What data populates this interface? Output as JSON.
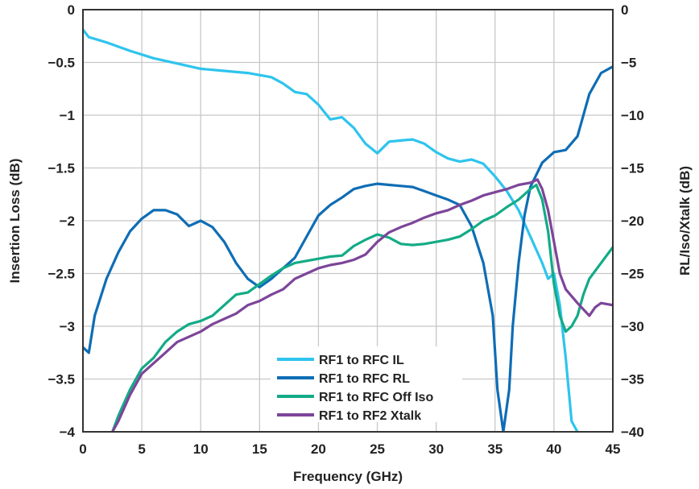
{
  "chart_data": {
    "type": "line",
    "xlabel": "Frequency (GHz)",
    "ylabel_left": "Insertion Loss (dB)",
    "ylabel_right": "RL/Iso/Xtalk (dB)",
    "xlim": [
      0,
      45
    ],
    "ylim_left": [
      -4,
      0
    ],
    "ylim_right": [
      -40,
      0
    ],
    "x_ticks": [
      0,
      5,
      10,
      15,
      20,
      25,
      30,
      35,
      40,
      45
    ],
    "y_ticks_left": [
      0,
      -0.5,
      -1,
      -1.5,
      -2,
      -2.5,
      -3,
      -3.5,
      -4
    ],
    "y_ticks_right": [
      0,
      -5,
      -10,
      -15,
      -20,
      -25,
      -30,
      -35,
      -40
    ],
    "grid": true,
    "legend_position": "bottom-center",
    "series": [
      {
        "name": "RF1 to RFC IL",
        "axis": "left",
        "color": "#2ec4ee",
        "points": [
          [
            0,
            -0.19
          ],
          [
            0.5,
            -0.26
          ],
          [
            2,
            -0.31
          ],
          [
            4,
            -0.39
          ],
          [
            6,
            -0.46
          ],
          [
            8,
            -0.51
          ],
          [
            10,
            -0.56
          ],
          [
            12,
            -0.58
          ],
          [
            14,
            -0.6
          ],
          [
            16,
            -0.64
          ],
          [
            17,
            -0.7
          ],
          [
            18,
            -0.78
          ],
          [
            19,
            -0.8
          ],
          [
            20,
            -0.9
          ],
          [
            21,
            -1.04
          ],
          [
            22,
            -1.02
          ],
          [
            23,
            -1.12
          ],
          [
            24,
            -1.27
          ],
          [
            25,
            -1.36
          ],
          [
            26,
            -1.25
          ],
          [
            27,
            -1.24
          ],
          [
            28,
            -1.23
          ],
          [
            29,
            -1.27
          ],
          [
            30,
            -1.35
          ],
          [
            31,
            -1.41
          ],
          [
            32,
            -1.44
          ],
          [
            33,
            -1.42
          ],
          [
            34,
            -1.46
          ],
          [
            35,
            -1.58
          ],
          [
            36,
            -1.72
          ],
          [
            37,
            -1.9
          ],
          [
            38,
            -2.15
          ],
          [
            39,
            -2.4
          ],
          [
            39.5,
            -2.55
          ],
          [
            40,
            -2.5
          ],
          [
            40.5,
            -2.8
          ],
          [
            41,
            -3.3
          ],
          [
            41.5,
            -3.9
          ],
          [
            42,
            -4.0
          ]
        ]
      },
      {
        "name": "RF1 to RFC RL",
        "axis": "right",
        "color": "#0f6db5",
        "points": [
          [
            0,
            -32
          ],
          [
            0.5,
            -32.5
          ],
          [
            1,
            -29
          ],
          [
            2,
            -25.5
          ],
          [
            3,
            -23
          ],
          [
            4,
            -21
          ],
          [
            5,
            -19.8
          ],
          [
            6,
            -19
          ],
          [
            7,
            -19
          ],
          [
            8,
            -19.4
          ],
          [
            9,
            -20.5
          ],
          [
            10,
            -20
          ],
          [
            11,
            -20.6
          ],
          [
            12,
            -22
          ],
          [
            13,
            -24
          ],
          [
            14,
            -25.5
          ],
          [
            15,
            -26.3
          ],
          [
            16,
            -25.5
          ],
          [
            17,
            -24.5
          ],
          [
            18,
            -23.5
          ],
          [
            19,
            -21.5
          ],
          [
            20,
            -19.5
          ],
          [
            21,
            -18.5
          ],
          [
            22,
            -17.8
          ],
          [
            23,
            -17
          ],
          [
            24,
            -16.7
          ],
          [
            25,
            -16.5
          ],
          [
            26,
            -16.6
          ],
          [
            27,
            -16.7
          ],
          [
            28,
            -16.8
          ],
          [
            29,
            -17.2
          ],
          [
            30,
            -17.6
          ],
          [
            31,
            -18
          ],
          [
            32,
            -18.5
          ],
          [
            33,
            -20.5
          ],
          [
            34,
            -24
          ],
          [
            34.8,
            -29
          ],
          [
            35.2,
            -36
          ],
          [
            35.7,
            -40
          ],
          [
            36.2,
            -36
          ],
          [
            36.5,
            -30
          ],
          [
            37,
            -24
          ],
          [
            37.5,
            -19.5
          ],
          [
            38,
            -16.8
          ],
          [
            39,
            -14.5
          ],
          [
            40,
            -13.5
          ],
          [
            41,
            -13.3
          ],
          [
            42,
            -12
          ],
          [
            43,
            -8
          ],
          [
            44,
            -6
          ],
          [
            45,
            -5.4
          ]
        ]
      },
      {
        "name": "RF1 to RFC Off Iso",
        "axis": "right",
        "color": "#13ab86",
        "points": [
          [
            2.5,
            -40
          ],
          [
            3,
            -38.5
          ],
          [
            4,
            -36
          ],
          [
            5,
            -34
          ],
          [
            6,
            -33
          ],
          [
            7,
            -31.5
          ],
          [
            8,
            -30.5
          ],
          [
            9,
            -29.8
          ],
          [
            10,
            -29.5
          ],
          [
            11,
            -29
          ],
          [
            12,
            -28
          ],
          [
            13,
            -27
          ],
          [
            14,
            -26.8
          ],
          [
            15,
            -26
          ],
          [
            16,
            -25.2
          ],
          [
            17,
            -24.5
          ],
          [
            18,
            -24
          ],
          [
            19,
            -23.8
          ],
          [
            20,
            -23.6
          ],
          [
            21,
            -23.4
          ],
          [
            22,
            -23.3
          ],
          [
            23,
            -22.4
          ],
          [
            24,
            -21.8
          ],
          [
            25,
            -21.3
          ],
          [
            26,
            -21.6
          ],
          [
            27,
            -22.2
          ],
          [
            28,
            -22.3
          ],
          [
            29,
            -22.2
          ],
          [
            30,
            -22.0
          ],
          [
            31,
            -21.8
          ],
          [
            32,
            -21.5
          ],
          [
            33,
            -20.8
          ],
          [
            34,
            -20
          ],
          [
            35,
            -19.5
          ],
          [
            36,
            -18.7
          ],
          [
            37,
            -18
          ],
          [
            38,
            -17
          ],
          [
            38.5,
            -16.6
          ],
          [
            39,
            -18
          ],
          [
            39.5,
            -21
          ],
          [
            40,
            -26
          ],
          [
            40.5,
            -29
          ],
          [
            41,
            -30.5
          ],
          [
            41.5,
            -30
          ],
          [
            42,
            -29
          ],
          [
            42.5,
            -27
          ],
          [
            43,
            -25.5
          ],
          [
            44,
            -24
          ],
          [
            45,
            -22.5
          ]
        ]
      },
      {
        "name": "RF1 to RF2 Xtalk",
        "axis": "right",
        "color": "#7d4599",
        "points": [
          [
            2.5,
            -40
          ],
          [
            3,
            -39
          ],
          [
            4,
            -36.5
          ],
          [
            5,
            -34.5
          ],
          [
            6,
            -33.5
          ],
          [
            7,
            -32.5
          ],
          [
            8,
            -31.5
          ],
          [
            9,
            -31
          ],
          [
            10,
            -30.5
          ],
          [
            11,
            -29.8
          ],
          [
            12,
            -29.3
          ],
          [
            13,
            -28.8
          ],
          [
            14,
            -28
          ],
          [
            15,
            -27.6
          ],
          [
            16,
            -27
          ],
          [
            17,
            -26.5
          ],
          [
            18,
            -25.5
          ],
          [
            19,
            -25
          ],
          [
            20,
            -24.5
          ],
          [
            21,
            -24.2
          ],
          [
            22,
            -24
          ],
          [
            23,
            -23.7
          ],
          [
            24,
            -23.2
          ],
          [
            25,
            -22
          ],
          [
            26,
            -21.1
          ],
          [
            27,
            -20.6
          ],
          [
            28,
            -20.2
          ],
          [
            29,
            -19.7
          ],
          [
            30,
            -19.3
          ],
          [
            31,
            -19
          ],
          [
            32,
            -18.5
          ],
          [
            33,
            -18.1
          ],
          [
            34,
            -17.6
          ],
          [
            35,
            -17.3
          ],
          [
            36,
            -17
          ],
          [
            37,
            -16.6
          ],
          [
            38,
            -16.4
          ],
          [
            38.6,
            -16.1
          ],
          [
            39,
            -17
          ],
          [
            39.5,
            -19
          ],
          [
            40,
            -22
          ],
          [
            40.5,
            -25
          ],
          [
            41,
            -26.5
          ],
          [
            42,
            -27.8
          ],
          [
            43,
            -29
          ],
          [
            43.5,
            -28.2
          ],
          [
            44,
            -27.8
          ],
          [
            45,
            -28
          ]
        ]
      }
    ]
  }
}
